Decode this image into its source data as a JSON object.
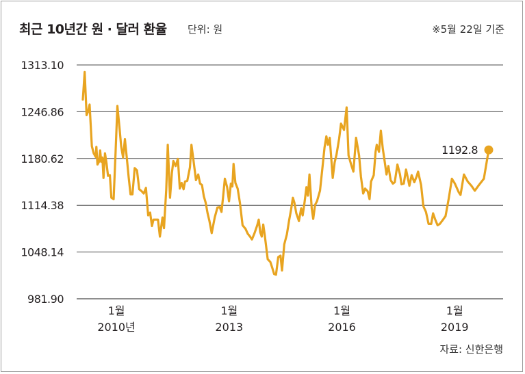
{
  "header": {
    "title": "최근 10년간 원 · 달러 환율",
    "unit": "단위: 원",
    "note": "※5월 22일 기준"
  },
  "footer": {
    "source": "자료: 신한은행"
  },
  "colors": {
    "line": "#e8a420",
    "grid": "#4a4a4a",
    "axis": "#231f20"
  },
  "chart_data": {
    "type": "line",
    "title": "최근 10년간 원 · 달러 환율",
    "ylabel": "단위: 원",
    "ylim": [
      981.9,
      1313.1
    ],
    "y_ticks": [
      "1313.10",
      "1246.86",
      "1180.62",
      "1114.38",
      "1048.14",
      "981.90"
    ],
    "x_ticks": [
      {
        "t": 2010.0,
        "line1": "1월",
        "line2": "2010년"
      },
      {
        "t": 2013.0,
        "line1": "1월",
        "line2": "2013"
      },
      {
        "t": 2016.0,
        "line1": "1월",
        "line2": "2016"
      },
      {
        "t": 2019.0,
        "line1": "1월",
        "line2": "2019"
      }
    ],
    "grid": true,
    "legend": "none",
    "end_label": "1192.8",
    "series": [
      {
        "values": [
          [
            2009.58,
            1264
          ],
          [
            2009.63,
            1303
          ],
          [
            2009.68,
            1242
          ],
          [
            2009.72,
            1247
          ],
          [
            2009.76,
            1257
          ],
          [
            2009.82,
            1198
          ],
          [
            2009.87,
            1188
          ],
          [
            2009.92,
            1183
          ],
          [
            2009.94,
            1197
          ],
          [
            2009.97,
            1172
          ],
          [
            2010.01,
            1176
          ],
          [
            2010.04,
            1192
          ],
          [
            2010.07,
            1176
          ],
          [
            2010.1,
            1182
          ],
          [
            2010.13,
            1153
          ],
          [
            2010.17,
            1188
          ],
          [
            2010.21,
            1174
          ],
          [
            2010.25,
            1156
          ],
          [
            2010.3,
            1157
          ],
          [
            2010.34,
            1125
          ],
          [
            2010.4,
            1123
          ],
          [
            2010.45,
            1188
          ],
          [
            2010.5,
            1255
          ],
          [
            2010.56,
            1222
          ],
          [
            2010.6,
            1198
          ],
          [
            2010.65,
            1182
          ],
          [
            2010.7,
            1208
          ],
          [
            2010.75,
            1182
          ],
          [
            2010.8,
            1154
          ],
          [
            2010.85,
            1130
          ],
          [
            2010.9,
            1130
          ],
          [
            2010.96,
            1167
          ],
          [
            2011.02,
            1164
          ],
          [
            2011.08,
            1137
          ],
          [
            2011.15,
            1134
          ],
          [
            2011.2,
            1131
          ],
          [
            2011.26,
            1139
          ],
          [
            2011.32,
            1100
          ],
          [
            2011.37,
            1104
          ],
          [
            2011.42,
            1085
          ],
          [
            2011.46,
            1094
          ],
          [
            2011.52,
            1094
          ],
          [
            2011.58,
            1094
          ],
          [
            2011.63,
            1070
          ],
          [
            2011.7,
            1097
          ],
          [
            2011.74,
            1082
          ],
          [
            2011.8,
            1137
          ],
          [
            2011.84,
            1200
          ],
          [
            2011.9,
            1125
          ],
          [
            2011.95,
            1160
          ],
          [
            2011.99,
            1177
          ],
          [
            2012.05,
            1170
          ],
          [
            2012.11,
            1180
          ],
          [
            2012.16,
            1138
          ],
          [
            2012.21,
            1146
          ],
          [
            2012.26,
            1137
          ],
          [
            2012.3,
            1148
          ],
          [
            2012.36,
            1149
          ],
          [
            2012.43,
            1168
          ],
          [
            2012.47,
            1200
          ],
          [
            2012.52,
            1180
          ],
          [
            2012.59,
            1150
          ],
          [
            2012.65,
            1158
          ],
          [
            2012.7,
            1145
          ],
          [
            2012.75,
            1143
          ],
          [
            2012.8,
            1127
          ],
          [
            2012.85,
            1118
          ],
          [
            2012.9,
            1103
          ],
          [
            2012.95,
            1092
          ],
          [
            2013.01,
            1075
          ],
          [
            2013.09,
            1097
          ],
          [
            2013.16,
            1111
          ],
          [
            2013.22,
            1112
          ],
          [
            2013.27,
            1105
          ],
          [
            2013.31,
            1125
          ],
          [
            2013.36,
            1152
          ],
          [
            2013.42,
            1140
          ],
          [
            2013.47,
            1120
          ],
          [
            2013.52,
            1145
          ],
          [
            2013.56,
            1141
          ],
          [
            2013.59,
            1173
          ],
          [
            2013.64,
            1146
          ],
          [
            2013.7,
            1138
          ],
          [
            2013.76,
            1118
          ],
          [
            2013.83,
            1086
          ],
          [
            2013.91,
            1081
          ],
          [
            2013.97,
            1074
          ],
          [
            2014.03,
            1070
          ],
          [
            2014.08,
            1066
          ],
          [
            2014.15,
            1075
          ],
          [
            2014.22,
            1086
          ],
          [
            2014.26,
            1094
          ],
          [
            2014.3,
            1076
          ],
          [
            2014.34,
            1070
          ],
          [
            2014.38,
            1087
          ],
          [
            2014.42,
            1072
          ],
          [
            2014.5,
            1038
          ],
          [
            2014.57,
            1034
          ],
          [
            2014.62,
            1026
          ],
          [
            2014.67,
            1017
          ],
          [
            2014.72,
            1016
          ],
          [
            2014.78,
            1041
          ],
          [
            2014.84,
            1043
          ],
          [
            2014.88,
            1022
          ],
          [
            2014.94,
            1059
          ],
          [
            2015.01,
            1073
          ],
          [
            2015.07,
            1093
          ],
          [
            2015.12,
            1108
          ],
          [
            2015.17,
            1125
          ],
          [
            2015.21,
            1118
          ],
          [
            2015.26,
            1103
          ],
          [
            2015.33,
            1092
          ],
          [
            2015.39,
            1110
          ],
          [
            2015.43,
            1100
          ],
          [
            2015.48,
            1119
          ],
          [
            2015.53,
            1140
          ],
          [
            2015.57,
            1128
          ],
          [
            2015.61,
            1158
          ],
          [
            2015.67,
            1110
          ],
          [
            2015.71,
            1095
          ],
          [
            2015.76,
            1115
          ],
          [
            2015.81,
            1120
          ],
          [
            2015.89,
            1135
          ],
          [
            2015.95,
            1165
          ],
          [
            2016.01,
            1196
          ],
          [
            2016.06,
            1212
          ],
          [
            2016.1,
            1200
          ],
          [
            2016.15,
            1210
          ],
          [
            2016.23,
            1153
          ],
          [
            2016.28,
            1175
          ],
          [
            2016.33,
            1186
          ],
          [
            2016.4,
            1209
          ],
          [
            2016.45,
            1230
          ],
          [
            2016.53,
            1221
          ],
          [
            2016.6,
            1253
          ],
          [
            2016.65,
            1185
          ],
          [
            2016.72,
            1172
          ],
          [
            2016.78,
            1162
          ],
          [
            2016.85,
            1210
          ],
          [
            2016.93,
            1185
          ],
          [
            2016.98,
            1155
          ],
          [
            2017.04,
            1131
          ],
          [
            2017.09,
            1138
          ],
          [
            2017.16,
            1134
          ],
          [
            2017.21,
            1123
          ],
          [
            2017.25,
            1148
          ],
          [
            2017.32,
            1157
          ],
          [
            2017.37,
            1190
          ],
          [
            2017.4,
            1200
          ],
          [
            2017.46,
            1190
          ],
          [
            2017.51,
            1220
          ],
          [
            2017.56,
            1195
          ],
          [
            2017.61,
            1177
          ],
          [
            2017.66,
            1158
          ],
          [
            2017.71,
            1170
          ],
          [
            2017.77,
            1150
          ],
          [
            2017.83,
            1145
          ],
          [
            2017.88,
            1147
          ],
          [
            2017.95,
            1172
          ],
          [
            2018.02,
            1158
          ],
          [
            2018.06,
            1144
          ],
          [
            2018.12,
            1145
          ],
          [
            2018.18,
            1165
          ],
          [
            2018.22,
            1155
          ],
          [
            2018.27,
            1142
          ],
          [
            2018.33,
            1157
          ],
          [
            2018.4,
            1147
          ],
          [
            2018.46,
            1155
          ],
          [
            2018.5,
            1162
          ],
          [
            2018.58,
            1143
          ],
          [
            2018.64,
            1113
          ],
          [
            2018.71,
            1105
          ],
          [
            2018.78,
            1088
          ],
          [
            2018.85,
            1088
          ],
          [
            2018.9,
            1103
          ],
          [
            2018.95,
            1095
          ],
          [
            2019.02,
            1086
          ],
          [
            2019.08,
            1088
          ],
          [
            2019.15,
            1093
          ],
          [
            2019.23,
            1099
          ],
          [
            2019.32,
            1125
          ],
          [
            2019.4,
            1152
          ],
          [
            2019.48,
            1145
          ],
          [
            2019.58,
            1133
          ],
          [
            2019.63,
            1129
          ],
          [
            2019.72,
            1158
          ],
          [
            2019.82,
            1148
          ],
          [
            2019.92,
            1142
          ],
          [
            2020.01,
            1135
          ],
          [
            2020.12,
            1143
          ],
          [
            2020.25,
            1152
          ],
          [
            2020.38,
            1192.8
          ]
        ]
      }
    ]
  }
}
